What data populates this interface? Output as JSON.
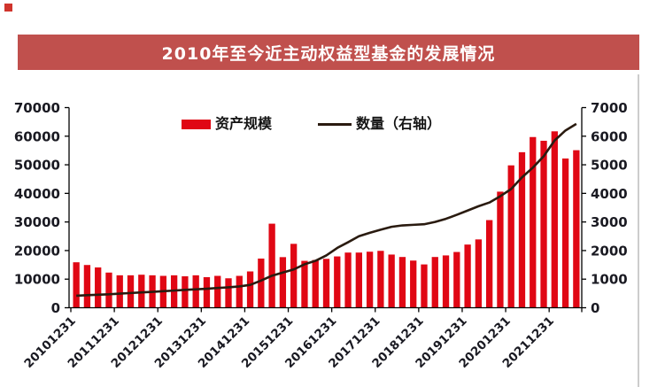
{
  "banner": {
    "title": "2010年至今近主动权益型基金的发展情况",
    "bg_color": "#C0504D",
    "text_color": "#FFFFFF"
  },
  "decorations": {
    "corner_dot_color": "#D0342C",
    "right_border_color": "#CCCCCC"
  },
  "chart_data": {
    "type": "bar",
    "subtype": "bar+line-dual-axis",
    "grid": "off",
    "legend_position": "top-center",
    "categories": [
      "20101231",
      "20110331",
      "20110630",
      "20110930",
      "20111231",
      "20120331",
      "20120630",
      "20120930",
      "20121231",
      "20130331",
      "20130630",
      "20130930",
      "20131231",
      "20140331",
      "20140630",
      "20140930",
      "20141231",
      "20150331",
      "20150630",
      "20150930",
      "20151231",
      "20160331",
      "20160630",
      "20160930",
      "20161231",
      "20170331",
      "20170630",
      "20170930",
      "20171231",
      "20180331",
      "20180630",
      "20180930",
      "20181231",
      "20190331",
      "20190630",
      "20190930",
      "20191231",
      "20200331",
      "20200630",
      "20200930",
      "20201231",
      "20210331",
      "20210630",
      "20210930",
      "20211231",
      "20220331",
      "20220630"
    ],
    "x_tick_labels": [
      "20101231",
      "20111231",
      "20121231",
      "20131231",
      "20141231",
      "20151231",
      "20161231",
      "20171231",
      "20181231",
      "20191231",
      "20201231",
      "20211231"
    ],
    "series": [
      {
        "name": "资产规模",
        "type": "bar",
        "axis": "left",
        "color": "#E00714",
        "values": [
          15900,
          14950,
          14100,
          12300,
          11350,
          11350,
          11550,
          11350,
          11150,
          11350,
          11000,
          11350,
          10700,
          11150,
          10300,
          11150,
          12700,
          17200,
          29400,
          17700,
          22350,
          16400,
          16700,
          17100,
          17950,
          19300,
          19300,
          19600,
          19900,
          18600,
          17750,
          16500,
          15150,
          17750,
          18300,
          19500,
          22100,
          23900,
          30650,
          40600,
          49800,
          54400,
          59700,
          58400,
          61700,
          52200,
          55100
        ]
      },
      {
        "name": "数量（右轴）",
        "type": "line",
        "axis": "right",
        "color": "#2A1B10",
        "values": [
          420,
          440,
          455,
          470,
          495,
          515,
          535,
          555,
          580,
          600,
          625,
          645,
          665,
          690,
          715,
          745,
          800,
          950,
          1120,
          1230,
          1340,
          1520,
          1640,
          1830,
          2090,
          2290,
          2500,
          2620,
          2730,
          2830,
          2880,
          2900,
          2920,
          3000,
          3110,
          3250,
          3400,
          3550,
          3680,
          3900,
          4150,
          4560,
          4900,
          5300,
          5850,
          6200,
          6430
        ]
      }
    ],
    "left_axis": {
      "min": 0,
      "max": 70000,
      "step": 10000,
      "tick_labels": [
        "0",
        "10000",
        "20000",
        "30000",
        "40000",
        "50000",
        "60000",
        "70000"
      ]
    },
    "right_axis": {
      "min": 0,
      "max": 7000,
      "step": 1000,
      "tick_labels": [
        "0",
        "1000",
        "2000",
        "3000",
        "4000",
        "5000",
        "6000",
        "7000"
      ]
    },
    "axis_color": "#000000",
    "tick_text_color": "#1A1A22"
  }
}
